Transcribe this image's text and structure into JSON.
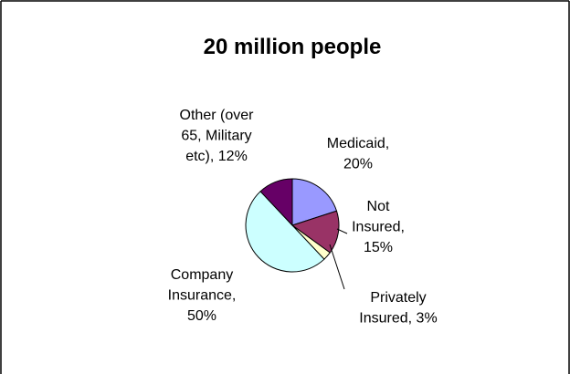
{
  "chart_data": {
    "type": "pie",
    "title": "20 million people",
    "slices": [
      {
        "label_lines": [
          "Medicaid,",
          "20%"
        ],
        "value": 20,
        "color": "#9999ff"
      },
      {
        "label_lines": [
          "Not",
          "Insured,",
          "15%"
        ],
        "value": 15,
        "color": "#993366"
      },
      {
        "label_lines": [
          "Privately",
          "Insured, 3%"
        ],
        "value": 3,
        "color": "#ffffcc"
      },
      {
        "label_lines": [
          "Company",
          "Insurance,",
          "50%"
        ],
        "value": 50,
        "color": "#ccffff"
      },
      {
        "label_lines": [
          "Other (over",
          "65, Military",
          "etc), 12%"
        ],
        "value": 12,
        "color": "#660066"
      }
    ],
    "start_angle_deg": 0,
    "direction": "clockwise",
    "legend": "none",
    "data_labels": "outside"
  }
}
